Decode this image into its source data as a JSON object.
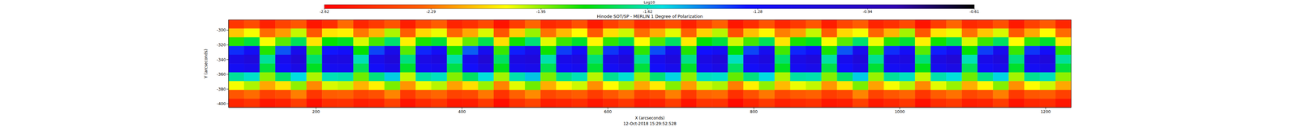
{
  "chart_data": {
    "type": "heatmap",
    "title": "Hinode SOT/SP - MERLIN 1 Degree of Polarization",
    "xlabel": "X (arcseconds)",
    "ylabel": "Y (arcseconds)",
    "annotation": "12-Oct-2018 15:29:52.528",
    "xlim": [
      80,
      1235
    ],
    "xticks": [
      200,
      400,
      600,
      800,
      1000,
      1200
    ],
    "ylim": [
      -405,
      -286
    ],
    "yticks": [
      -400,
      -380,
      -360,
      -340,
      -320,
      -300
    ],
    "colorbar": {
      "label": "Log10",
      "range": [
        -2.62,
        -0.61
      ],
      "ticks": [
        -2.62,
        -2.29,
        -1.95,
        -1.62,
        -1.28,
        -0.94,
        -0.61
      ]
    },
    "cells": [
      [
        -2.45,
        -2.38,
        -2.52,
        -2.41,
        -2.35,
        -2.55,
        -2.48,
        -2.3,
        -2.5,
        -2.44,
        -2.36,
        -2.53,
        -2.4,
        -2.33,
        -2.51,
        -2.47,
        -2.39,
        -2.56,
        -2.43,
        -2.31,
        -2.49,
        -2.46,
        -2.37,
        -2.54,
        -2.42,
        -2.34,
        -2.5,
        -2.45,
        -2.38,
        -2.52,
        -2.41,
        -2.32,
        -2.55,
        -2.48,
        -2.36,
        -2.5,
        -2.44,
        -2.35,
        -2.53,
        -2.4,
        -2.33,
        -2.51,
        -2.47,
        -2.39,
        -2.56,
        -2.43,
        -2.31,
        -2.49,
        -2.46,
        -2.37,
        -2.54,
        -2.42,
        -2.34,
        -2.5
      ],
      [
        -2.15,
        -2.05,
        -2.3,
        -2.22,
        -2.0,
        -2.35,
        -2.1,
        -2.08,
        -2.28,
        -2.18,
        -1.98,
        -2.33,
        -2.12,
        -2.04,
        -2.31,
        -2.2,
        -2.02,
        -2.36,
        -2.14,
        -1.96,
        -2.29,
        -2.17,
        -2.06,
        -2.34,
        -2.11,
        -2.01,
        -2.3,
        -2.19,
        -2.03,
        -2.32,
        -2.13,
        -1.99,
        -2.37,
        -2.16,
        -2.07,
        -2.27,
        -2.21,
        -2.0,
        -2.33,
        -2.12,
        -2.05,
        -2.31,
        -2.18,
        -1.97,
        -2.35,
        -2.1,
        -2.04,
        -2.29,
        -2.15,
        -2.02,
        -2.34,
        -2.2,
        -2.06,
        -2.3
      ],
      [
        -1.85,
        -1.75,
        -2.05,
        -1.9,
        -1.72,
        -2.1,
        -1.82,
        -1.78,
        -2.02,
        -1.88,
        -1.7,
        -2.08,
        -1.84,
        -1.76,
        -2.04,
        -1.91,
        -1.73,
        -2.11,
        -1.83,
        -1.69,
        -2.03,
        -1.87,
        -1.77,
        -2.07,
        -1.86,
        -1.74,
        -2.06,
        -1.89,
        -1.71,
        -2.09,
        -1.81,
        -1.75,
        -2.01,
        -1.88,
        -1.72,
        -2.1,
        -1.84,
        -1.78,
        -2.05,
        -1.9,
        -1.7,
        -2.04,
        -1.85,
        -1.76,
        -2.08,
        -1.83,
        -1.73,
        -2.02,
        -1.87,
        -1.71,
        -2.06,
        -1.86,
        -1.77,
        -2.09
      ],
      [
        -1.35,
        -1.25,
        -1.85,
        -1.4,
        -1.2,
        -1.88,
        -1.32,
        -1.28,
        -1.82,
        -1.38,
        -1.18,
        -1.9,
        -1.34,
        -1.26,
        -1.84,
        -1.41,
        -1.22,
        -1.87,
        -1.33,
        -1.19,
        -1.83,
        -1.37,
        -1.27,
        -1.89,
        -1.36,
        -1.24,
        -1.86,
        -1.39,
        -1.21,
        -1.85,
        -1.31,
        -1.25,
        -1.81,
        -1.38,
        -1.22,
        -1.88,
        -1.34,
        -1.28,
        -1.84,
        -1.4,
        -1.2,
        -1.86,
        -1.35,
        -1.26,
        -1.9,
        -1.33,
        -1.23,
        -1.82,
        -1.37,
        -1.21,
        -1.87,
        -1.36,
        -1.27,
        -1.85
      ],
      [
        -1.17,
        -1.1,
        -1.65,
        -1.2,
        -1.08,
        -1.7,
        -1.15,
        -1.14,
        -1.62,
        -1.19,
        -1.09,
        -1.68,
        -1.16,
        -1.12,
        -1.64,
        -1.21,
        -1.07,
        -1.71,
        -1.14,
        -1.1,
        -1.63,
        -1.18,
        -1.13,
        -1.69,
        -1.17,
        -1.09,
        -1.66,
        -1.2,
        -1.11,
        -1.67,
        -1.15,
        -1.08,
        -1.61,
        -1.19,
        -1.12,
        -1.7,
        -1.16,
        -1.1,
        -1.64,
        -1.21,
        -1.09,
        -1.66,
        -1.17,
        -1.13,
        -1.69,
        -1.14,
        -1.07,
        -1.62,
        -1.18,
        -1.11,
        -1.68,
        -1.17,
        -1.1,
        -1.65
      ],
      [
        -1.25,
        -1.2,
        -1.75,
        -1.28,
        -1.17,
        -1.78,
        -1.23,
        -1.22,
        -1.72,
        -1.27,
        -1.18,
        -1.77,
        -1.24,
        -1.21,
        -1.74,
        -1.29,
        -1.16,
        -1.79,
        -1.22,
        -1.19,
        -1.73,
        -1.26,
        -1.22,
        -1.76,
        -1.25,
        -1.18,
        -1.75,
        -1.28,
        -1.2,
        -1.77,
        -1.23,
        -1.17,
        -1.71,
        -1.27,
        -1.21,
        -1.78,
        -1.24,
        -1.19,
        -1.74,
        -1.29,
        -1.18,
        -1.76,
        -1.25,
        -1.22,
        -1.79,
        -1.22,
        -1.16,
        -1.72,
        -1.26,
        -1.2,
        -1.77,
        -1.25,
        -1.19,
        -1.75
      ],
      [
        -1.65,
        -1.6,
        -1.95,
        -1.7,
        -1.57,
        -1.98,
        -1.62,
        -1.63,
        -1.92,
        -1.68,
        -1.55,
        -2.0,
        -1.64,
        -1.61,
        -1.94,
        -1.71,
        -1.58,
        -1.97,
        -1.63,
        -1.54,
        -1.93,
        -1.67,
        -1.62,
        -1.99,
        -1.66,
        -1.59,
        -1.96,
        -1.69,
        -1.56,
        -1.95,
        -1.61,
        -1.6,
        -1.91,
        -1.68,
        -1.57,
        -1.98,
        -1.64,
        -1.63,
        -1.94,
        -1.7,
        -1.55,
        -1.96,
        -1.65,
        -1.61,
        -2.0,
        -1.63,
        -1.58,
        -1.92,
        -1.67,
        -1.56,
        -1.97,
        -1.66,
        -1.62,
        -1.95
      ],
      [
        -2.05,
        -1.98,
        -2.2,
        -2.1,
        -1.95,
        -2.25,
        -2.02,
        -2.0,
        -2.18,
        -2.08,
        -1.93,
        -2.23,
        -2.04,
        -1.99,
        -2.21,
        -2.11,
        -1.96,
        -2.26,
        -2.03,
        -1.92,
        -2.19,
        -2.07,
        -2.01,
        -2.24,
        -2.06,
        -1.97,
        -2.2,
        -2.09,
        -1.94,
        -2.22,
        -2.01,
        -1.98,
        -2.27,
        -2.08,
        -1.95,
        -2.17,
        -2.04,
        -2.0,
        -2.23,
        -2.1,
        -1.93,
        -2.21,
        -2.05,
        -1.99,
        -2.25,
        -2.03,
        -1.96,
        -2.19,
        -2.07,
        -1.94,
        -2.24,
        -2.06,
        -2.01,
        -2.2
      ],
      [
        -2.35,
        -2.3,
        -2.42,
        -2.38,
        -2.27,
        -2.45,
        -2.33,
        -2.32,
        -2.4,
        -2.37,
        -2.26,
        -2.44,
        -2.34,
        -2.31,
        -2.41,
        -2.39,
        -2.28,
        -2.46,
        -2.32,
        -2.25,
        -2.4,
        -2.36,
        -2.33,
        -2.43,
        -2.35,
        -2.29,
        -2.42,
        -2.38,
        -2.27,
        -2.44,
        -2.31,
        -2.3,
        -2.47,
        -2.37,
        -2.28,
        -2.39,
        -2.34,
        -2.32,
        -2.43,
        -2.39,
        -2.26,
        -2.41,
        -2.35,
        -2.31,
        -2.45,
        -2.33,
        -2.29,
        -2.4,
        -2.36,
        -2.27,
        -2.44,
        -2.35,
        -2.33,
        -2.42
      ],
      [
        -2.5,
        -2.46,
        -2.55,
        -2.52,
        -2.43,
        -2.57,
        -2.48,
        -2.47,
        -2.53,
        -2.51,
        -2.42,
        -2.56,
        -2.49,
        -2.45,
        -2.54,
        -2.53,
        -2.44,
        -2.58,
        -2.47,
        -2.41,
        -2.53,
        -2.51,
        -2.48,
        -2.55,
        -2.5,
        -2.45,
        -2.54,
        -2.52,
        -2.43,
        -2.56,
        -2.46,
        -2.46,
        -2.59,
        -2.51,
        -2.44,
        -2.52,
        -2.49,
        -2.47,
        -2.55,
        -2.53,
        -2.42,
        -2.54,
        -2.5,
        -2.45,
        -2.57,
        -2.48,
        -2.44,
        -2.53,
        -2.51,
        -2.43,
        -2.56,
        -2.5,
        -2.48,
        -2.55
      ]
    ]
  }
}
